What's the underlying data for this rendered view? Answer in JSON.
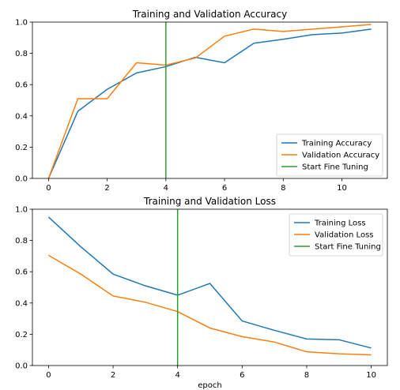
{
  "chart_data": [
    {
      "type": "line",
      "title": "Training and Validation Accuracy",
      "xlabel": "",
      "ylabel": "",
      "xlim": [
        -0.55,
        11.55
      ],
      "ylim": [
        0,
        1.0
      ],
      "xticks": [
        0,
        2,
        4,
        6,
        8,
        10
      ],
      "yticks": [
        0.0,
        0.2,
        0.4,
        0.6,
        0.8,
        1.0
      ],
      "grid": false,
      "legend_position": "lower-right",
      "series": [
        {
          "name": "Training Accuracy",
          "color": "#1f77b4",
          "x": [
            0,
            1,
            2,
            3,
            4,
            5,
            6,
            7,
            8,
            9,
            10,
            11
          ],
          "y": [
            0.0,
            0.43,
            0.57,
            0.675,
            0.715,
            0.775,
            0.74,
            0.865,
            0.89,
            0.92,
            0.93,
            0.955
          ]
        },
        {
          "name": "Validation Accuracy",
          "color": "#ff7f0e",
          "x": [
            0,
            1,
            2,
            3,
            4,
            5,
            6,
            7,
            8,
            9,
            10,
            11
          ],
          "y": [
            0.0,
            0.51,
            0.51,
            0.74,
            0.725,
            0.77,
            0.91,
            0.955,
            0.94,
            0.955,
            0.97,
            0.985
          ]
        },
        {
          "name": "Start Fine Tuning",
          "color": "#2ca02c",
          "x": [
            4,
            4
          ],
          "y": [
            0,
            1.0
          ]
        }
      ]
    },
    {
      "type": "line",
      "title": "Training and Validation Loss",
      "xlabel": "epoch",
      "ylabel": "",
      "xlim": [
        -0.5,
        10.5
      ],
      "ylim": [
        0,
        1.0
      ],
      "xticks": [
        0,
        2,
        4,
        6,
        8,
        10
      ],
      "yticks": [
        0.0,
        0.2,
        0.4,
        0.6,
        0.8,
        1.0
      ],
      "grid": false,
      "legend_position": "upper-right",
      "series": [
        {
          "name": "Training Loss",
          "color": "#1f77b4",
          "x": [
            0,
            1,
            2,
            3,
            4,
            5,
            6,
            7,
            8,
            9,
            10
          ],
          "y": [
            0.95,
            0.76,
            0.585,
            0.51,
            0.45,
            0.525,
            0.285,
            0.225,
            0.17,
            0.165,
            0.112
          ]
        },
        {
          "name": "Validation Loss",
          "color": "#ff7f0e",
          "x": [
            0,
            1,
            2,
            3,
            4,
            5,
            6,
            7,
            8,
            9,
            10
          ],
          "y": [
            0.705,
            0.585,
            0.445,
            0.405,
            0.345,
            0.24,
            0.185,
            0.15,
            0.088,
            0.075,
            0.068
          ]
        },
        {
          "name": "Start Fine Tuning",
          "color": "#2ca02c",
          "x": [
            4,
            4
          ],
          "y": [
            0,
            1.0
          ]
        }
      ]
    }
  ]
}
